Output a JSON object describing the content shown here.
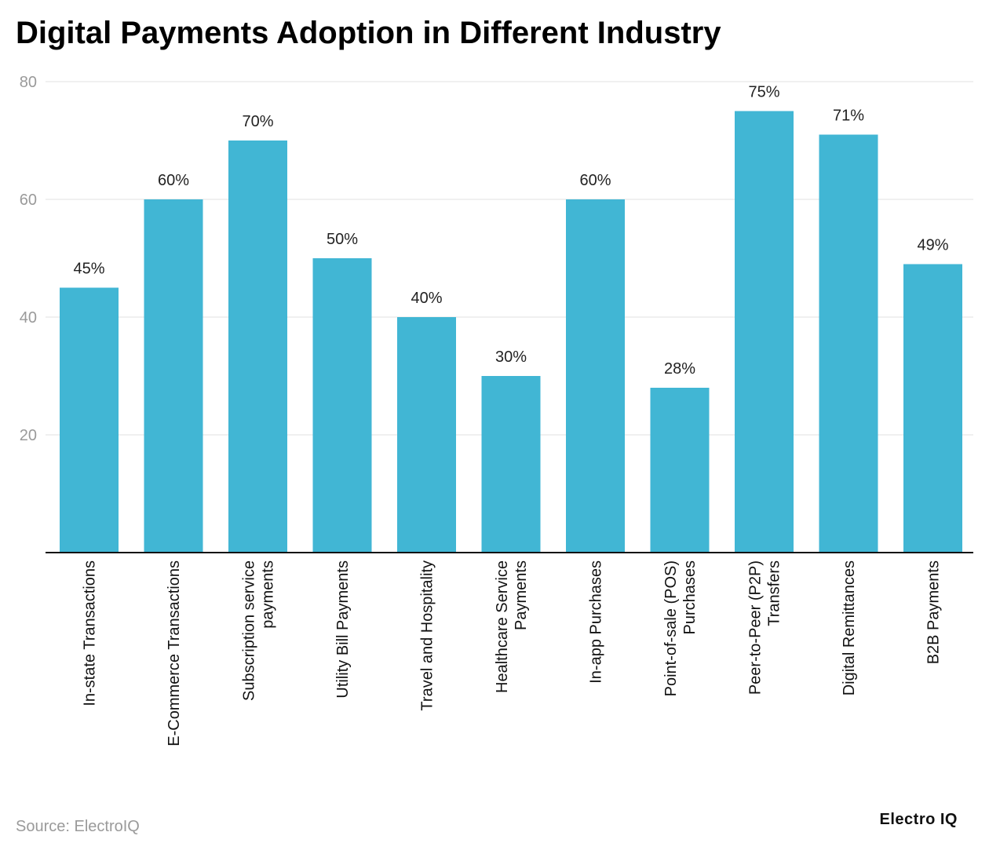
{
  "chart_data": {
    "type": "bar",
    "title": "Digital Payments Adoption in Different Industry",
    "xlabel": "",
    "ylabel": "",
    "ylim": [
      0,
      80
    ],
    "yticks": [
      20,
      40,
      60,
      80
    ],
    "grid": true,
    "categories": [
      [
        "In-state Transactions"
      ],
      [
        "E-Commerce Transactions"
      ],
      [
        "Subscription service",
        "payments"
      ],
      [
        "Utility Bill Payments"
      ],
      [
        "Travel and Hospitality"
      ],
      [
        "Healthcare Service",
        "Payments"
      ],
      [
        "In-app Purchases"
      ],
      [
        "Point-of-sale (POS)",
        "Purchases"
      ],
      [
        "Peer-to-Peer (P2P)",
        "Transfers"
      ],
      [
        "Digital Remittances"
      ],
      [
        "B2B Payments"
      ]
    ],
    "values": [
      45,
      60,
      70,
      50,
      40,
      30,
      60,
      28,
      75,
      71,
      49
    ],
    "value_suffix": "%",
    "bar_color": "#41b6d4"
  },
  "footer": {
    "source": "Source: ElectroIQ",
    "brand": "Electro IQ"
  }
}
